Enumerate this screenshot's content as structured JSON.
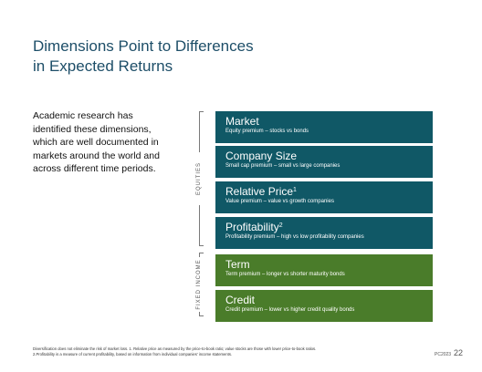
{
  "title": {
    "line1": "Dimensions  Point to Differences",
    "line2": "in Expected  Returns"
  },
  "intro": "Academic research has identified these dimensions, which are well documented in markets around the world and across different time periods.",
  "groups": {
    "equities": "EQUITIES",
    "fixed_income": "FIXED INCOME"
  },
  "dimensions": [
    {
      "title": "Market",
      "sup": "",
      "subtitle": "Equity premium – stocks vs bonds",
      "color": "#105866"
    },
    {
      "title": "Company Size",
      "sup": "",
      "subtitle": "Small cap premium – small vs large companies",
      "color": "#105866"
    },
    {
      "title": "Relative Price",
      "sup": "1",
      "subtitle": "Value premium – value vs growth companies",
      "color": "#105866"
    },
    {
      "title": "Profitability",
      "sup": "2",
      "subtitle": "Profitability premium – high vs low profitability companies",
      "color": "#105866"
    },
    {
      "title": "Term",
      "sup": "",
      "subtitle": "Term premium – longer vs shorter maturity bonds",
      "color": "#4a7c2a"
    },
    {
      "title": "Credit",
      "sup": "",
      "subtitle": "Credit premium – lower vs higher credit quality bonds",
      "color": "#4a7c2a"
    }
  ],
  "footnotes": {
    "line1": "Diversification does not eliminate the risk of market loss. 1. Relative price as measured by the price-to-book ratio; value stocks are those with lower price-to-book ratios.",
    "line2": "2.Profitability is a measure of current profitability, based on information from individual companies' income statements."
  },
  "slide_code": "PC2023",
  "page_number": "22"
}
